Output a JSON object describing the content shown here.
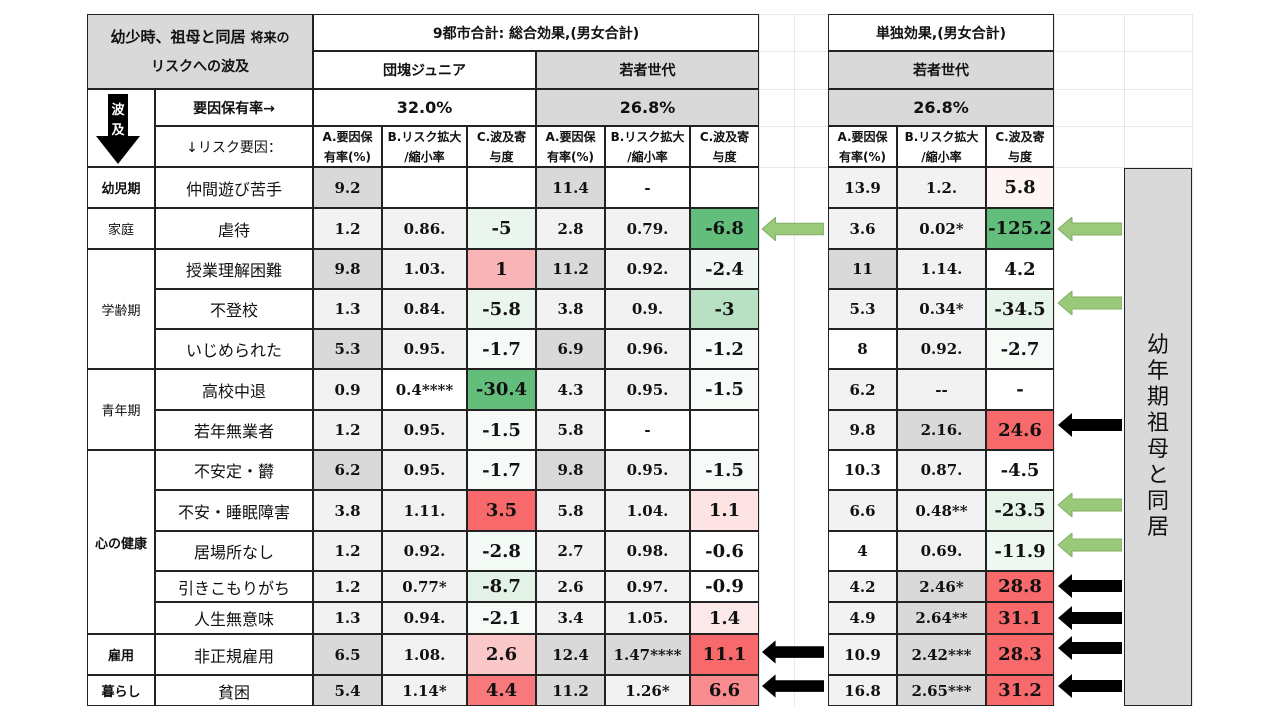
{
  "header": {
    "corner_title": "幼少時、祖母と同居",
    "corner_title_small": "将来の",
    "corner_subtitle": "リスクへの波及",
    "combined_title": "9都市合計: 総合効果,(男女合計)",
    "single_title": "単独効果,(男女合計)",
    "group1": "団塊ジュニア",
    "group2": "若者世代",
    "group3": "若者世代",
    "arrow_label_1": "波",
    "arrow_label_2": "及",
    "rate_label": "要因保有率→",
    "factor_label": "↓リスク要因：",
    "rate1": "32.0%",
    "rate2": "26.8%",
    "rate3": "26.8%",
    "colA_1": "A.要因保",
    "colA_2": "有率(%)",
    "colB_1": "B.リスク拡大",
    "colB_2": "/縮小率",
    "colC_1": "C.波及寄",
    "colC_2": "与度"
  },
  "side_label": "幼年期祖母と同居",
  "periods": [
    {
      "label": "幼児期",
      "bold": true
    },
    {
      "label": "家庭",
      "bold": false
    },
    {
      "label": "学齢期",
      "bold": false
    },
    {
      "label": "青年期",
      "bold": false
    },
    {
      "label": "心の健康",
      "bold": true
    },
    {
      "label": "雇用",
      "bold": true
    },
    {
      "label": "暮らし",
      "bold": true
    }
  ],
  "rows": [
    {
      "factor": "仲間遊び苦手",
      "g1": [
        "9.2",
        "",
        ""
      ],
      "g2": [
        "11.4",
        "-",
        ""
      ],
      "g3": [
        "13.9",
        "1.2.",
        "5.8"
      ]
    },
    {
      "factor": "虐待",
      "g1": [
        "1.2",
        "0.86.",
        "-5"
      ],
      "g2": [
        "2.8",
        "0.79.",
        "-6.8"
      ],
      "g3": [
        "3.6",
        "0.02*",
        "-125.2"
      ]
    },
    {
      "factor": "授業理解困難",
      "g1": [
        "9.8",
        "1.03.",
        "1"
      ],
      "g2": [
        "11.2",
        "0.92.",
        "-2.4"
      ],
      "g3": [
        "11",
        "1.14.",
        "4.2"
      ]
    },
    {
      "factor": "不登校",
      "g1": [
        "1.3",
        "0.84.",
        "-5.8"
      ],
      "g2": [
        "3.8",
        "0.9.",
        "-3"
      ],
      "g3": [
        "5.3",
        "0.34*",
        "-34.5"
      ]
    },
    {
      "factor": "いじめられた",
      "g1": [
        "5.3",
        "0.95.",
        "-1.7"
      ],
      "g2": [
        "6.9",
        "0.96.",
        "-1.2"
      ],
      "g3": [
        "8",
        "0.92.",
        "-2.7"
      ]
    },
    {
      "factor": "高校中退",
      "g1": [
        "0.9",
        "0.4****",
        "-30.4"
      ],
      "g2": [
        "4.3",
        "0.95.",
        "-1.5"
      ],
      "g3": [
        "6.2",
        "--",
        "-"
      ]
    },
    {
      "factor": "若年無業者",
      "g1": [
        "1.2",
        "0.95.",
        "-1.5"
      ],
      "g2": [
        "5.8",
        "-",
        ""
      ],
      "g3": [
        "9.8",
        "2.16.",
        "24.6"
      ]
    },
    {
      "factor": "不安定・欝",
      "g1": [
        "6.2",
        "0.95.",
        "-1.7"
      ],
      "g2": [
        "9.8",
        "0.95.",
        "-1.5"
      ],
      "g3": [
        "10.3",
        "0.87.",
        "-4.5"
      ]
    },
    {
      "factor": "不安・睡眠障害",
      "g1": [
        "3.8",
        "1.11.",
        "3.5"
      ],
      "g2": [
        "5.8",
        "1.04.",
        "1.1"
      ],
      "g3": [
        "6.6",
        "0.48**",
        "-23.5"
      ]
    },
    {
      "factor": "居場所なし",
      "g1": [
        "1.2",
        "0.92.",
        "-2.8"
      ],
      "g2": [
        "2.7",
        "0.98.",
        "-0.6"
      ],
      "g3": [
        "4",
        "0.69.",
        "-11.9"
      ]
    },
    {
      "factor": "引きこもりがち",
      "g1": [
        "1.2",
        "0.77*",
        "-8.7"
      ],
      "g2": [
        "2.6",
        "0.97.",
        "-0.9"
      ],
      "g3": [
        "4.2",
        "2.46*",
        "28.8"
      ]
    },
    {
      "factor": "人生無意味",
      "g1": [
        "1.3",
        "0.94.",
        "-2.1"
      ],
      "g2": [
        "3.4",
        "1.05.",
        "1.4"
      ],
      "g3": [
        "4.9",
        "2.64**",
        "31.1"
      ]
    },
    {
      "factor": "非正規雇用",
      "g1": [
        "6.5",
        "1.08.",
        "2.6"
      ],
      "g2": [
        "12.4",
        "1.47****",
        "11.1"
      ],
      "g3": [
        "10.9",
        "2.42***",
        "28.3"
      ]
    },
    {
      "factor": "貧困",
      "g1": [
        "5.4",
        "1.14*",
        "4.4"
      ],
      "g2": [
        "11.2",
        "1.26*",
        "6.6"
      ],
      "g3": [
        "16.8",
        "2.65***",
        "31.2"
      ]
    }
  ],
  "colors": {
    "header_gray": "#d9d9d9",
    "light_gray": "#f2f2f2",
    "arrow_green": "#9bc97b",
    "arrow_black": "#000000"
  }
}
